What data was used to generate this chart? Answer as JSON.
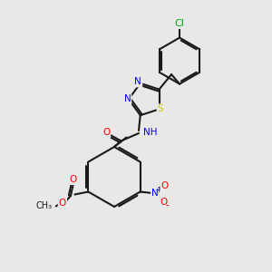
{
  "background_color": "#e8e8e8",
  "bond_color": "#1a1a1a",
  "bond_lw": 1.5,
  "atom_colors": {
    "N": "#0000ff",
    "O": "#ff0000",
    "S": "#cccc00",
    "Cl": "#00aa00",
    "C": "#1a1a1a",
    "H": "#1a1a1a"
  },
  "font_size": 7.5
}
